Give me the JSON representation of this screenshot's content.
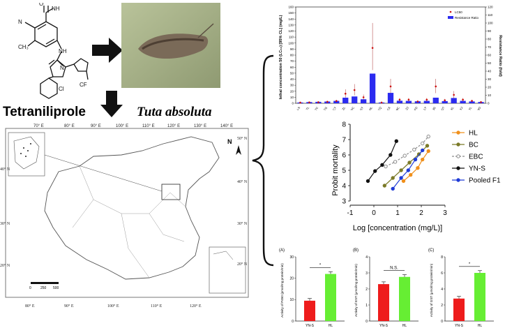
{
  "header": {
    "compound_name": "Tetraniliprole",
    "pest_name": "Tuta absoluta",
    "chem_labels": {
      "nh_me": "NH",
      "me": "CH₃",
      "nc": "N",
      "nh": "NH",
      "cl": "Cl",
      "cf3": "CF",
      "ch3": "CH₃",
      "o": "O",
      "n": "N"
    }
  },
  "map": {
    "lon_labels_top": [
      "70° E",
      "80° E",
      "90° E",
      "100° E",
      "110° E",
      "120° E",
      "130° E",
      "140° E"
    ],
    "lon_labels_bottom": [
      "80° E",
      "90° E",
      "100° E",
      "110° E",
      "120° E"
    ],
    "lat_labels_left": [
      "40° N",
      "30° N",
      "20° N"
    ],
    "lat_labels_right": [
      "50° N",
      "40° N",
      "30° N",
      "20° N"
    ],
    "north": "N",
    "scale": [
      "0",
      "250",
      "500"
    ]
  },
  "chart_data": [
    {
      "type": "bar",
      "categories": [
        "YN-S",
        "TL",
        "TC",
        "TG",
        "CY",
        "ZL",
        "DC",
        "SY",
        "HL",
        "CQ",
        "CX",
        "BC",
        "ZJ",
        "FD",
        "LY",
        "JG",
        "DT",
        "XL",
        "XJ",
        "YL",
        "SAMO"
      ],
      "series": [
        {
          "name": "LC50",
          "values": [
            1.2,
            1.6,
            1.8,
            2.5,
            3.8,
            16,
            22,
            10,
            92,
            1.2,
            28,
            6,
            6,
            3,
            6,
            28,
            5,
            14,
            6,
            4,
            2
          ]
        },
        {
          "name": "Resistance Ratio",
          "values": [
            1,
            1.5,
            1.8,
            2.2,
            3,
            7,
            8.5,
            5,
            37,
            1,
            13,
            3.2,
            3,
            2.5,
            3,
            7,
            2.7,
            6.6,
            3,
            2.3,
            1.6
          ]
        }
      ],
      "ylabel": "lethal concentration 50 (LC₅₀) [95% CL] (mg/L)",
      "y2label": "Resistance Ratio (fold)",
      "ylim": [
        0,
        160
      ],
      "y2lim": [
        0,
        120
      ],
      "yticks": [
        "0",
        "10",
        "20",
        "30",
        "40",
        "50",
        "60",
        "70",
        "80",
        "90",
        "100",
        "110",
        "120",
        "130",
        "140",
        "150",
        "160"
      ],
      "y2ticks": [
        "0",
        "10",
        "20",
        "30",
        "40",
        "50",
        "60",
        "70",
        "80",
        "90",
        "100",
        "110",
        "120"
      ],
      "legend": [
        "LC50",
        "Resistance Ratio"
      ],
      "legend_position": "top-right"
    },
    {
      "type": "line",
      "xlabel": "Log [concentration (mg/L)]",
      "ylabel": "Probit mortality",
      "xlim": [
        -1,
        3
      ],
      "ylim": [
        3,
        8
      ],
      "xticks": [
        "-1",
        "0",
        "1",
        "2",
        "3"
      ],
      "yticks": [
        "3",
        "4",
        "5",
        "6",
        "7",
        "8"
      ],
      "legend_position": "right",
      "series": [
        {
          "name": "HL",
          "color": "#f0901c",
          "marker": "circle",
          "x": [
            1.25,
            1.55,
            1.85,
            2.05,
            2.3
          ],
          "y": [
            4.3,
            4.7,
            5.15,
            5.7,
            6.25
          ]
        },
        {
          "name": "BC",
          "color": "#7b7a28",
          "marker": "circle",
          "x": [
            0.45,
            0.8,
            1.15,
            1.5,
            1.9,
            2.25
          ],
          "y": [
            4.0,
            4.5,
            5.0,
            5.5,
            6.05,
            6.6
          ]
        },
        {
          "name": "EBC",
          "color": "#8a8a8a",
          "marker": "open-circle",
          "dashed": true,
          "x": [
            0.5,
            0.9,
            1.3,
            1.7,
            2.05,
            2.3
          ],
          "y": [
            5.25,
            5.55,
            5.95,
            6.35,
            6.75,
            7.2
          ]
        },
        {
          "name": "YN-S",
          "color": "#111111",
          "marker": "circle",
          "x": [
            -0.25,
            0.05,
            0.35,
            0.7,
            0.95
          ],
          "y": [
            4.3,
            4.95,
            5.35,
            6.0,
            6.9
          ]
        },
        {
          "name": "Pooled F1",
          "color": "#1f3bd6",
          "marker": "circle",
          "x": [
            0.8,
            1.15,
            1.45,
            1.75,
            2.05
          ],
          "y": [
            3.8,
            4.5,
            5.0,
            5.7,
            6.3
          ]
        }
      ]
    },
    {
      "type": "bar",
      "panel": "(A)",
      "categories": [
        "YN-S",
        "HL"
      ],
      "values": [
        9.5,
        22
      ],
      "colors": [
        "#ee1c1c",
        "#66ee33"
      ],
      "ylabel": "Activity of P450 (pmol/mg protein/min)",
      "ylim": [
        0,
        30
      ],
      "yticks": [
        "0",
        "10",
        "20",
        "30"
      ],
      "significance": "*"
    },
    {
      "type": "bar",
      "panel": "(B)",
      "categories": [
        "YN-S",
        "HL"
      ],
      "values": [
        2.3,
        2.75
      ],
      "colors": [
        "#ee1c1c",
        "#66ee33"
      ],
      "ylabel": "Activity of EST (μmol/mg protein/min)",
      "ylim": [
        0,
        4
      ],
      "yticks": [
        "0",
        "1",
        "2",
        "3",
        "4"
      ],
      "significance": "N.S."
    },
    {
      "type": "bar",
      "panel": "(C)",
      "categories": [
        "YN-S",
        "HL"
      ],
      "values": [
        2.8,
        6.0
      ],
      "colors": [
        "#ee1c1c",
        "#66ee33"
      ],
      "ylabel": "Activity of GST (μmol/mg protein/min)",
      "ylim": [
        0,
        8
      ],
      "yticks": [
        "0",
        "2",
        "4",
        "6",
        "8"
      ],
      "significance": "*"
    }
  ]
}
